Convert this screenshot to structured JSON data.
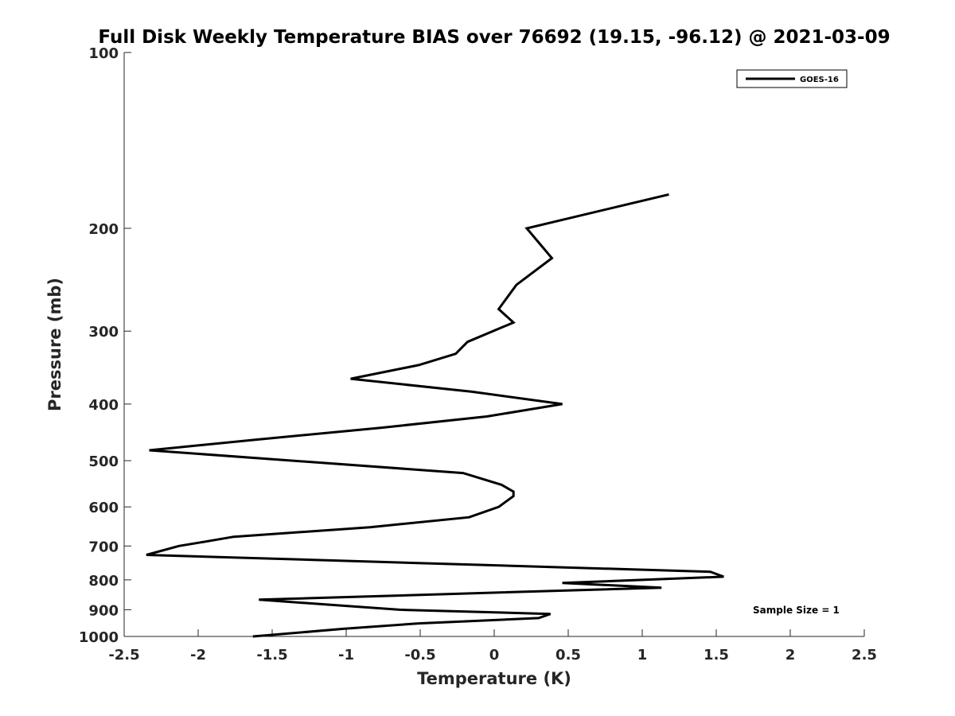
{
  "chart_data": {
    "type": "line",
    "title": "Full Disk Weekly Temperature BIAS over 76692 (19.15, -96.12) @ 2021-03-09",
    "xlabel": "Temperature (K)",
    "ylabel": "Pressure (mb)",
    "xlim": [
      -2.5,
      2.5
    ],
    "ylim": [
      1000,
      100
    ],
    "yscale": "log",
    "yaxis_reversed": true,
    "xticks": [
      -2.5,
      -2,
      -1.5,
      -1,
      -0.5,
      0,
      0.5,
      1,
      1.5,
      2,
      2.5
    ],
    "xtick_labels": [
      "-2.5",
      "-2",
      "-1.5",
      "-1",
      "-0.5",
      "0",
      "0.5",
      "1",
      "1.5",
      "2",
      "2.5"
    ],
    "yticks": [
      100,
      200,
      300,
      400,
      500,
      600,
      700,
      800,
      900,
      1000
    ],
    "ytick_labels": [
      "100",
      "200",
      "300",
      "400",
      "500",
      "600",
      "700",
      "800",
      "900",
      "1000"
    ],
    "grid": false,
    "legend_position": "top-right",
    "series": [
      {
        "name": "GOES-16",
        "color": "#000000",
        "points": [
          [
            1.18,
            175
          ],
          [
            0.22,
            200
          ],
          [
            0.39,
            225
          ],
          [
            0.15,
            250
          ],
          [
            0.03,
            275
          ],
          [
            0.13,
            290
          ],
          [
            -0.18,
            313
          ],
          [
            -0.26,
            328
          ],
          [
            -0.51,
            343
          ],
          [
            -0.97,
            362
          ],
          [
            -0.15,
            381
          ],
          [
            0.46,
            400
          ],
          [
            -0.05,
            420
          ],
          [
            -0.76,
            439
          ],
          [
            -1.6,
            460
          ],
          [
            -2.33,
            480
          ],
          [
            -0.21,
            525
          ],
          [
            0.05,
            550
          ],
          [
            0.13,
            565
          ],
          [
            0.13,
            575
          ],
          [
            0.03,
            600
          ],
          [
            -0.17,
            625
          ],
          [
            -0.84,
            650
          ],
          [
            -1.76,
            675
          ],
          [
            -1.98,
            690
          ],
          [
            -2.13,
            700
          ],
          [
            -2.35,
            725
          ],
          [
            1.46,
            775
          ],
          [
            1.55,
            790
          ],
          [
            0.46,
            810
          ],
          [
            1.13,
            825
          ],
          [
            -1.59,
            865
          ],
          [
            -0.64,
            900
          ],
          [
            0.38,
            915
          ],
          [
            0.3,
            930
          ],
          [
            -0.51,
            950
          ],
          [
            -1.01,
            970
          ],
          [
            -1.63,
            1000
          ]
        ]
      }
    ],
    "annotations": [
      "Sample Size = 1"
    ]
  }
}
